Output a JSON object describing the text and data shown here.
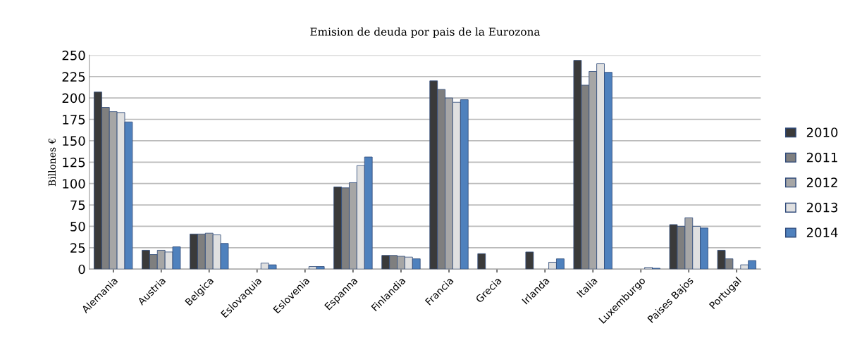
{
  "chart_data": {
    "type": "bar",
    "title": "Emision de deuda por pais de la Eurozona",
    "ylabel": "Billones €",
    "categories": [
      "Alemania",
      "Austria",
      "Belgica",
      "Eslovaquia",
      "Eslovenia",
      "Espanna",
      "Finlandia",
      "Francia",
      "Grecia",
      "Irlanda",
      "Italia",
      "Luxemburgo",
      "Paises Bajos",
      "Portugal"
    ],
    "series": [
      {
        "name": "2010",
        "color": "#3a3a3a",
        "values": [
          207,
          22,
          41,
          0,
          0,
          96,
          16,
          220,
          18,
          20,
          244,
          0,
          52,
          22
        ]
      },
      {
        "name": "2011",
        "color": "#7f7f7f",
        "values": [
          189,
          17,
          41,
          0,
          0,
          95,
          16,
          210,
          0,
          0,
          215,
          0,
          50,
          12
        ]
      },
      {
        "name": "2012",
        "color": "#a6a6a6",
        "values": [
          184,
          22,
          42,
          0,
          0,
          101,
          15,
          200,
          0,
          0,
          231,
          0,
          60,
          0
        ]
      },
      {
        "name": "2013",
        "color": "#e0e0e0",
        "values": [
          183,
          20,
          40,
          7,
          3,
          121,
          14,
          195,
          0,
          8,
          240,
          2,
          50,
          5
        ]
      },
      {
        "name": "2014",
        "color": "#4f81bd",
        "values": [
          172,
          26,
          30,
          5,
          3,
          131,
          12,
          198,
          0,
          12,
          230,
          1,
          48,
          10
        ]
      }
    ],
    "ylim": [
      0,
      250
    ],
    "yticks": [
      0,
      25,
      50,
      75,
      100,
      125,
      150,
      175,
      200,
      225,
      250
    ],
    "grid": "y",
    "legend": "right"
  }
}
